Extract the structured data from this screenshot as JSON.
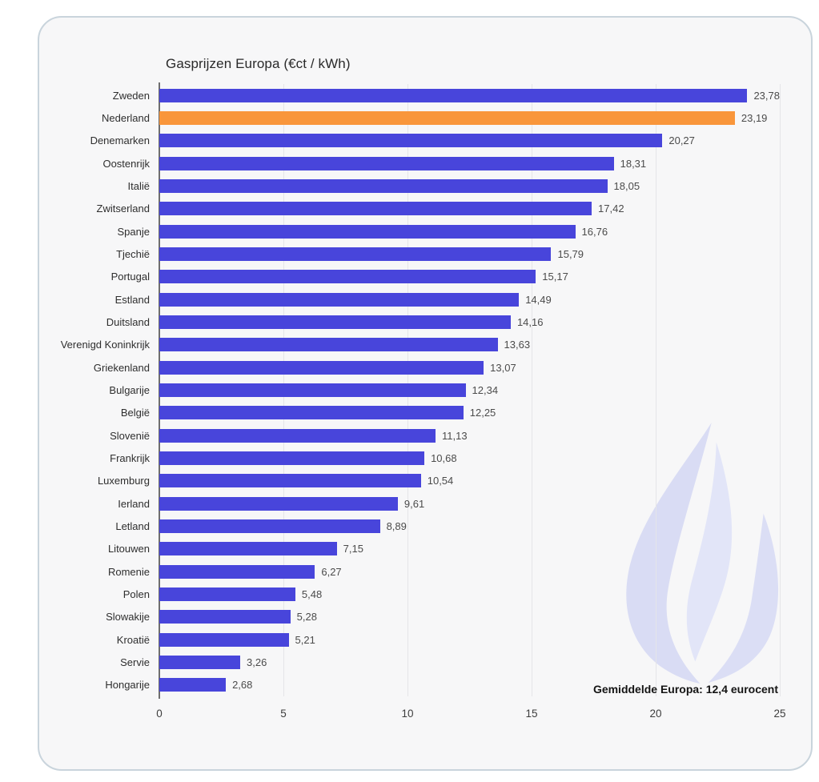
{
  "card": {
    "background": "#f7f7f8",
    "border_color": "#c9d4dc",
    "page_background": "#ffffff"
  },
  "chart_data": {
    "type": "bar",
    "orientation": "horizontal",
    "title": "Gasprijzen Europa (€ct / kWh)",
    "categories": [
      "Zweden",
      "Nederland",
      "Denemarken",
      "Oostenrijk",
      "Italië",
      "Zwitserland",
      "Spanje",
      "Tjechië",
      "Portugal",
      "Estland",
      "Duitsland",
      "Verenigd Koninkrijk",
      "Griekenland",
      "Bulgarije",
      "België",
      "Slovenië",
      "Frankrijk",
      "Luxemburg",
      "Ierland",
      "Letland",
      "Litouwen",
      "Romenie",
      "Polen",
      "Slowakije",
      "Kroatië",
      "Servie",
      "Hongarije"
    ],
    "values": [
      23.78,
      23.19,
      20.27,
      18.31,
      18.05,
      17.42,
      16.76,
      15.79,
      15.17,
      14.49,
      14.16,
      13.63,
      13.07,
      12.34,
      12.25,
      11.13,
      10.68,
      10.54,
      9.61,
      8.89,
      7.15,
      6.27,
      5.48,
      5.28,
      5.21,
      3.26,
      2.68
    ],
    "value_labels": [
      "23,78",
      "23,19",
      "20,27",
      "18,31",
      "18,05",
      "17,42",
      "16,76",
      "15,79",
      "15,17",
      "14,49",
      "14,16",
      "13,63",
      "13,07",
      "12,34",
      "12,25",
      "11,13",
      "10,68",
      "10,54",
      "9,61",
      "8,89",
      "7,15",
      "6,27",
      "5,48",
      "5,28",
      "5,21",
      "3,26",
      "2,68"
    ],
    "highlight_index": 1,
    "xlim": [
      0,
      25
    ],
    "x_ticks": [
      0,
      5,
      10,
      15,
      20,
      25
    ],
    "x_tick_labels": [
      "0",
      "5",
      "10",
      "15",
      "20",
      "25"
    ],
    "grid": "vertical",
    "legend": "none",
    "annotation": "Gemiddelde Europa: 12,4 eurocent",
    "colors": {
      "bar": "#4845db",
      "highlight": "#f9963b",
      "grid": "#e5e5e8",
      "axis": "#6e6e6e"
    }
  },
  "watermark": {
    "icon": "gas-flame-icon",
    "colors": [
      "#d7daf3",
      "#dfe2f7",
      "#d9dcf4"
    ]
  }
}
